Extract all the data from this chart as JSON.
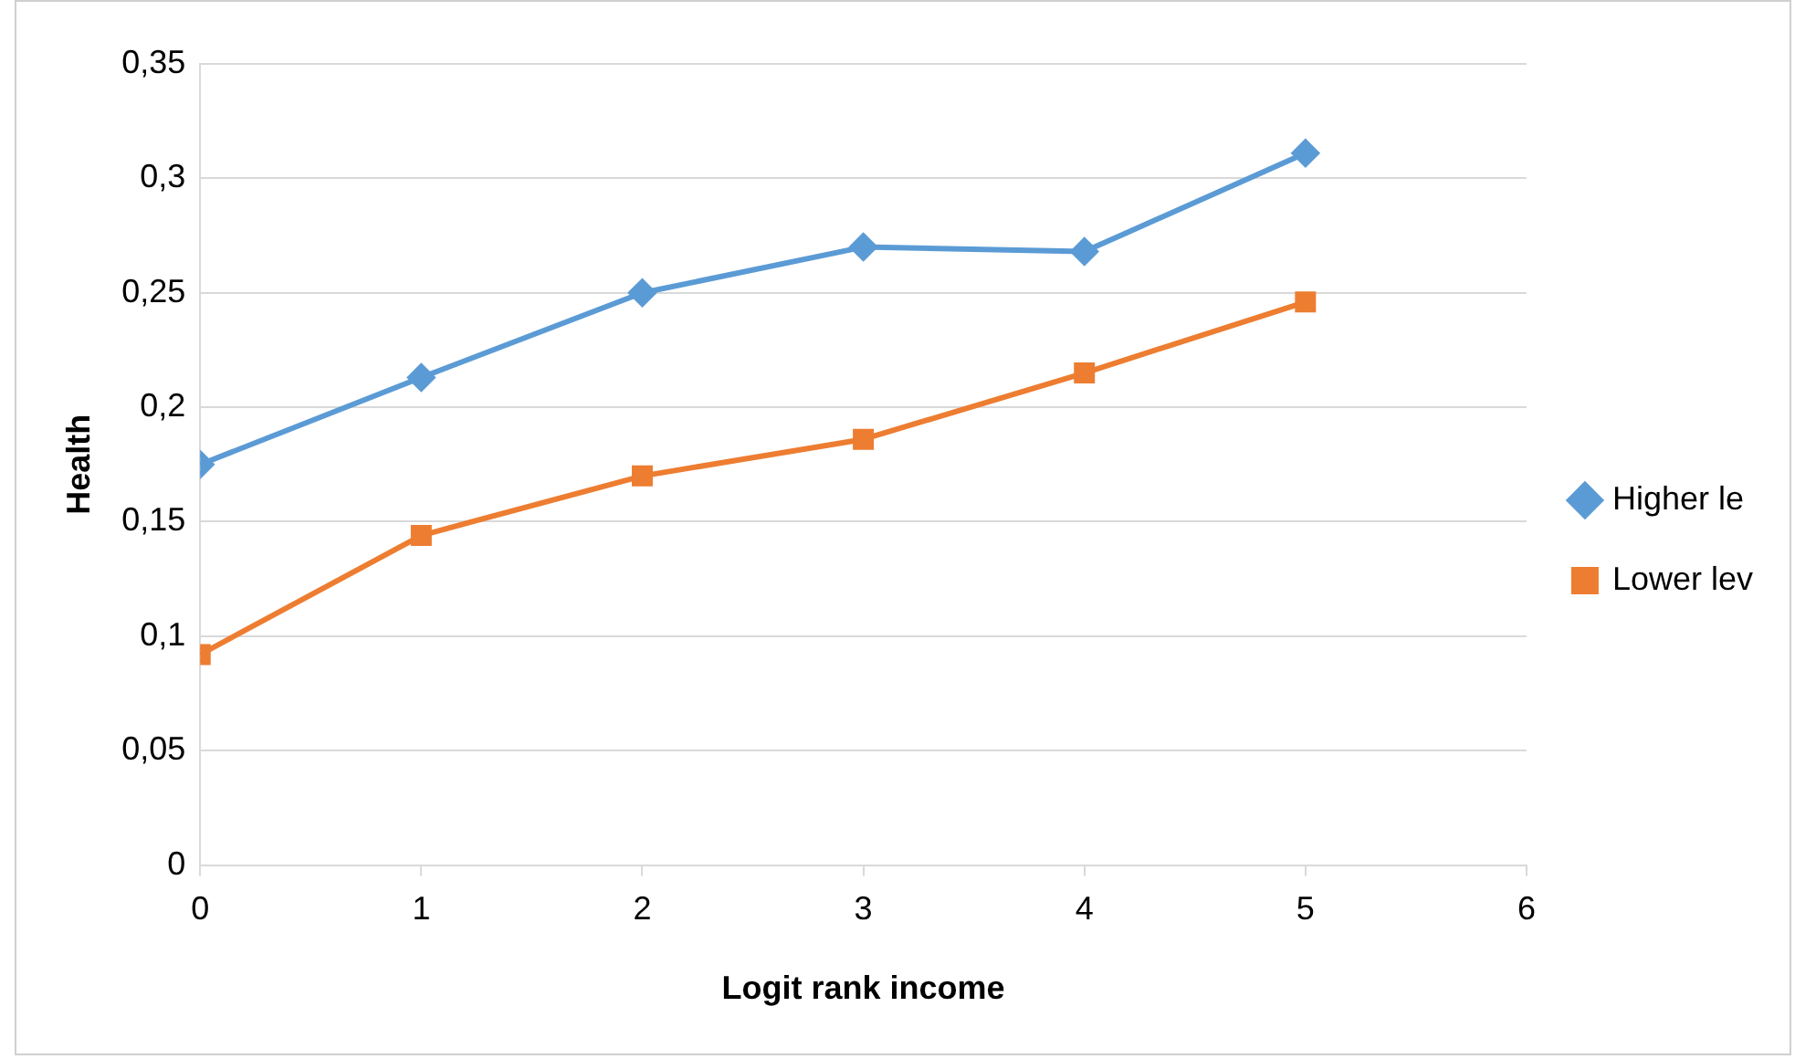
{
  "chart_data": {
    "type": "line",
    "xlabel": "Logit rank income",
    "ylabel": "Health",
    "x": [
      0,
      1,
      2,
      3,
      4,
      5
    ],
    "series": [
      {
        "name": "Higher le",
        "color": "#5b9bd5",
        "marker": "diamond",
        "values": [
          0.175,
          0.213,
          0.25,
          0.27,
          0.268,
          0.311
        ]
      },
      {
        "name": "Lower lev",
        "color": "#ed7d31",
        "marker": "square",
        "values": [
          0.092,
          0.144,
          0.17,
          0.186,
          0.215,
          0.246
        ]
      }
    ],
    "xlim": [
      0,
      6
    ],
    "xticks": [
      0,
      1,
      2,
      3,
      4,
      5,
      6
    ],
    "ylim": [
      0,
      0.35
    ],
    "yticks": [
      0,
      {
        "value": 0.05,
        "label": "0,05"
      },
      {
        "value": 0.1,
        "label": "0,1"
      },
      {
        "value": 0.15,
        "label": "0,15"
      },
      {
        "value": 0.2,
        "label": "0,2"
      },
      {
        "value": 0.25,
        "label": "0,25"
      },
      {
        "value": 0.3,
        "label": "0,3"
      },
      {
        "value": 0.35,
        "label": "0,35"
      }
    ],
    "grid": "y",
    "legend": "right",
    "line_style": "solid"
  }
}
